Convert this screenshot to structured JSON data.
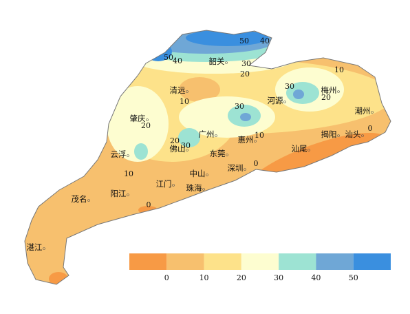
{
  "cities": [
    "韶关",
    "清远",
    "河源",
    "梅州",
    "潮州",
    "肇庆",
    "广州",
    "惠州",
    "揭阳",
    "汕头",
    "云浮",
    "佛山",
    "东莞",
    "汕尾",
    "深圳",
    "中山",
    "江门",
    "阳江",
    "珠海",
    "茂名",
    "湛江"
  ],
  "contour_labels": [
    50,
    40,
    50,
    40,
    30,
    20,
    10,
    30,
    20,
    10,
    30,
    20,
    10,
    0,
    20,
    30,
    10,
    0,
    0
  ],
  "legend": {
    "colors": [
      "#f79a45",
      "#f7c06e",
      "#fde28a",
      "#fdfdd0",
      "#9de3d3",
      "#6fa7d6",
      "#3a8fdf"
    ],
    "ticks": [
      0,
      10,
      20,
      30,
      40,
      50
    ]
  }
}
